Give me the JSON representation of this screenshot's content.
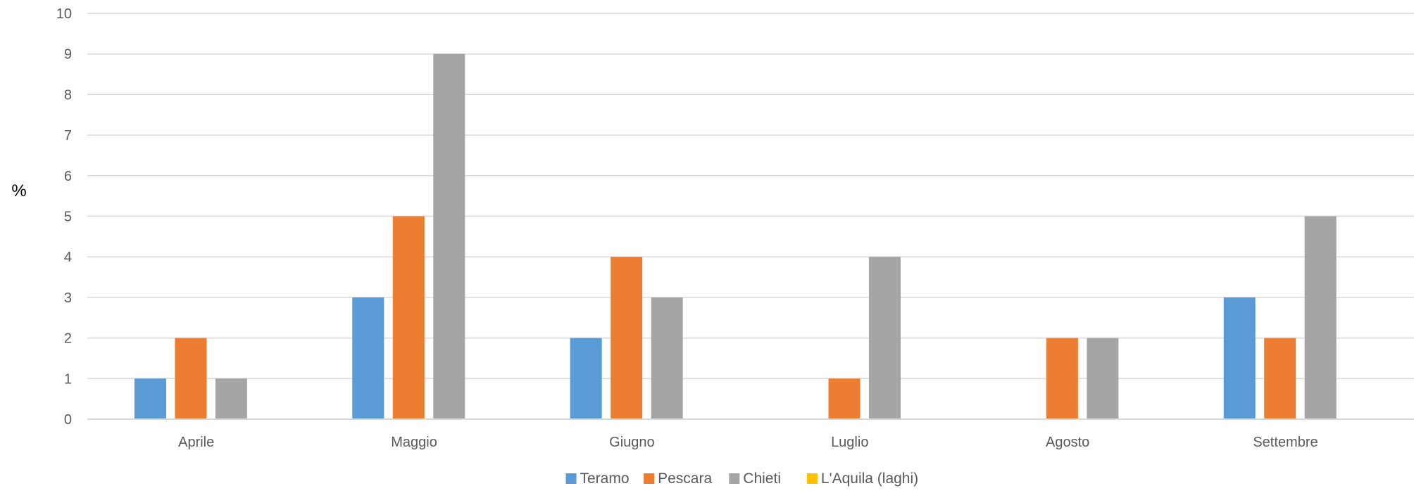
{
  "chart_data": {
    "type": "bar",
    "title": "",
    "xlabel": "",
    "ylabel": "%",
    "ylim": [
      0,
      10
    ],
    "yticks": [
      0,
      1,
      2,
      3,
      4,
      5,
      6,
      7,
      8,
      9,
      10
    ],
    "grid": true,
    "legend_position": "bottom",
    "categories": [
      "Aprile",
      "Maggio",
      "Giugno",
      "Luglio",
      "Agosto",
      "Settembre"
    ],
    "series": [
      {
        "name": "Teramo",
        "color": "#5B9BD5",
        "values": [
          1,
          3,
          2,
          0,
          0,
          3
        ]
      },
      {
        "name": "Pescara",
        "color": "#ED7D31",
        "values": [
          2,
          5,
          4,
          1,
          2,
          2
        ]
      },
      {
        "name": "Chieti",
        "color": "#A5A5A5",
        "values": [
          1,
          9,
          3,
          4,
          2,
          5
        ]
      },
      {
        "name": "L'Aquila (laghi)",
        "color": "#FFC000",
        "values": [
          0,
          0,
          0,
          0,
          0,
          0
        ]
      }
    ]
  }
}
